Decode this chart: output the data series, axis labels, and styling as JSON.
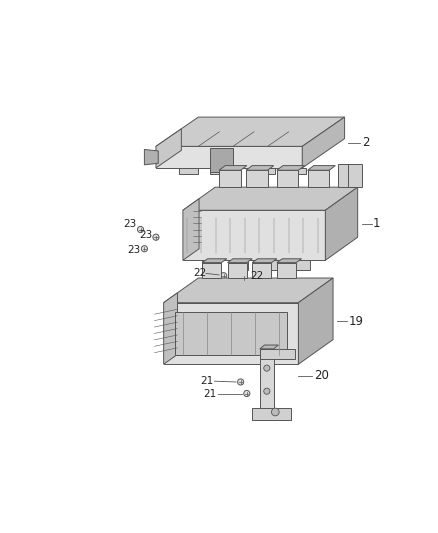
{
  "bg_color": "#ffffff",
  "line_color": "#555555",
  "label_color": "#222222",
  "font_size_label": 8.5,
  "parts": {
    "cover_label": "2",
    "upper_label": "1",
    "lower_label": "19",
    "mount_label": "20",
    "f23_label": "23",
    "f22_label": "22",
    "f21_label": "21"
  }
}
